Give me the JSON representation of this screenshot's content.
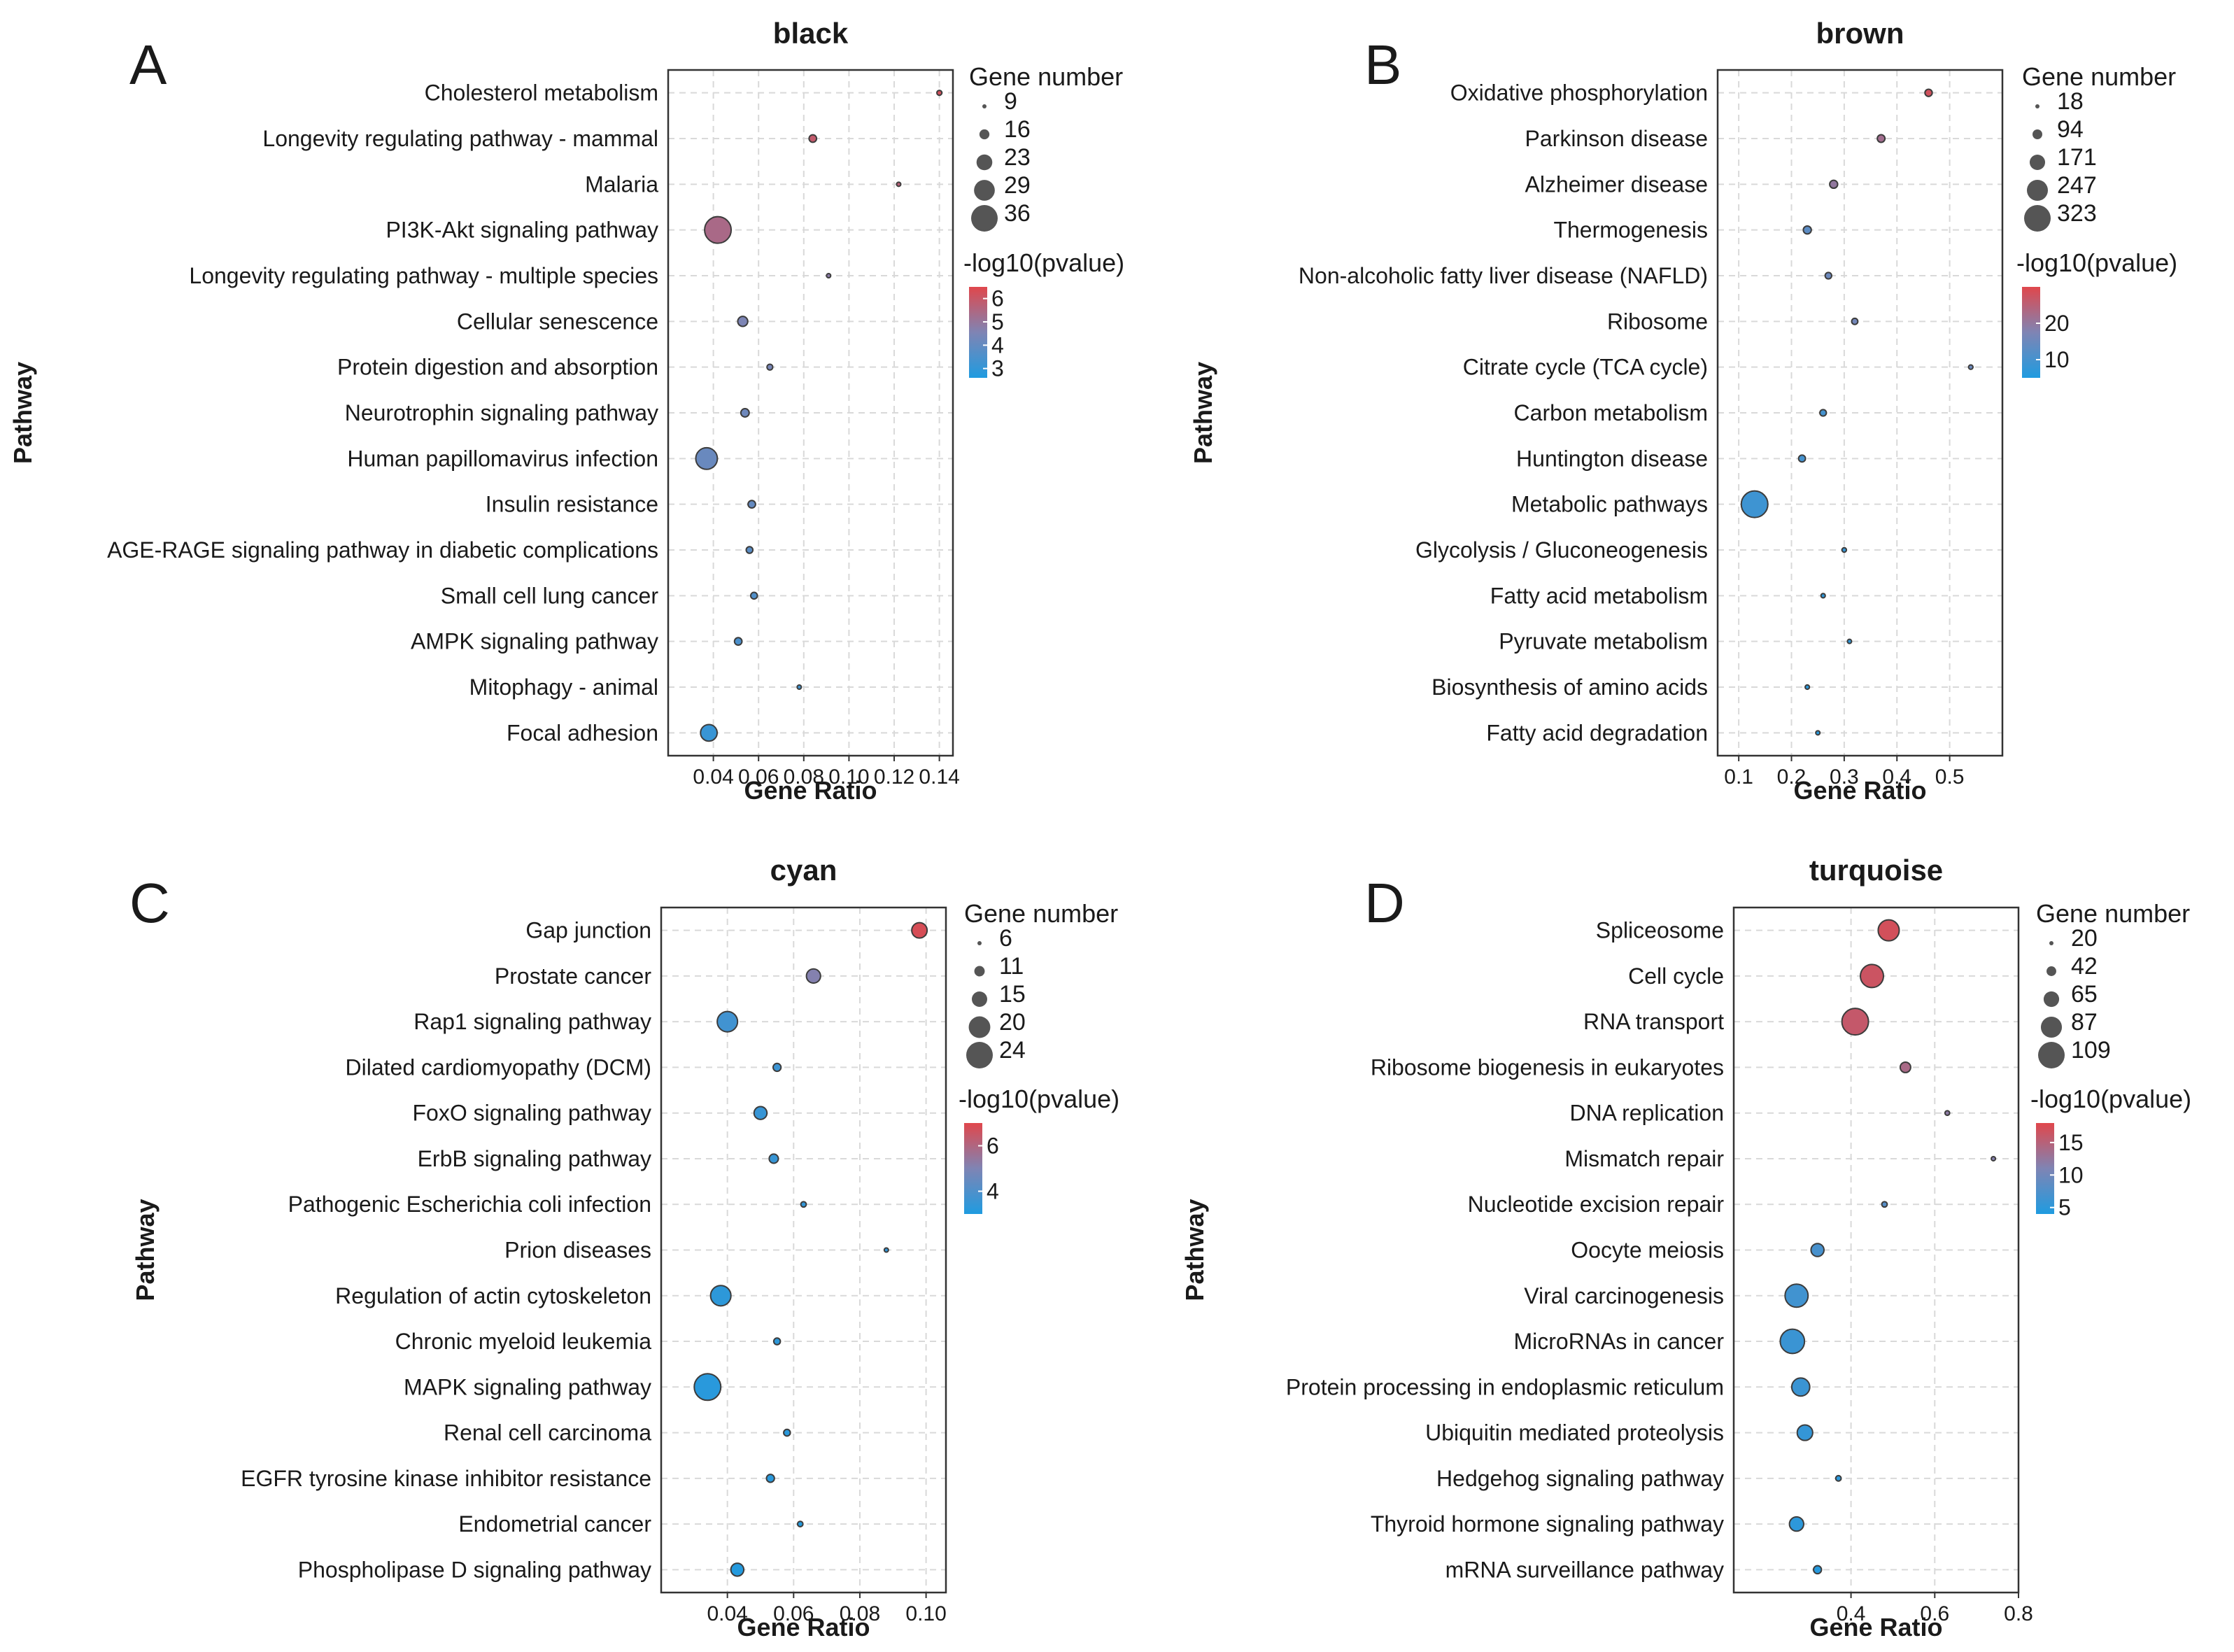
{
  "chart_data": [
    {
      "type": "scatter",
      "panel_label": "A",
      "title": "black",
      "xlabel": "Gene Ratio",
      "ylabel": "Pathway",
      "xlim": [
        0.02,
        0.146
      ],
      "xticks": [
        "0.04",
        "0.06",
        "0.08",
        "0.10",
        "0.12",
        "0.14"
      ],
      "xtick_values": [
        0.04,
        0.06,
        0.08,
        0.1,
        0.12,
        0.14
      ],
      "size_legend": {
        "title": "Gene number",
        "values": [
          9,
          16,
          23,
          29,
          36
        ],
        "labels": [
          "9",
          "16",
          "23",
          "29",
          "36"
        ]
      },
      "color_legend": {
        "title": "-log10(pvalue)",
        "range": [
          2.6,
          6.5
        ],
        "ticks": [
          6,
          5,
          4,
          3
        ],
        "tick_labels": [
          "6",
          "5",
          "4",
          "3"
        ]
      },
      "grid": true,
      "points": [
        {
          "pathway": "Cholesterol metabolism",
          "gene_ratio": 0.14,
          "gene_number": 10,
          "neg_log10_p": 6.2
        },
        {
          "pathway": "Longevity regulating pathway - mammal",
          "gene_ratio": 0.084,
          "gene_number": 13,
          "neg_log10_p": 5.9
        },
        {
          "pathway": "Malaria",
          "gene_ratio": 0.122,
          "gene_number": 9,
          "neg_log10_p": 5.7
        },
        {
          "pathway": "PI3K-Akt signaling pathway",
          "gene_ratio": 0.042,
          "gene_number": 36,
          "neg_log10_p": 5.4
        },
        {
          "pathway": "Longevity regulating pathway - multiple species",
          "gene_ratio": 0.091,
          "gene_number": 8,
          "neg_log10_p": 4.8
        },
        {
          "pathway": "Cellular senescence",
          "gene_ratio": 0.053,
          "gene_number": 16,
          "neg_log10_p": 4.5
        },
        {
          "pathway": "Protein digestion and absorption",
          "gene_ratio": 0.065,
          "gene_number": 11,
          "neg_log10_p": 4.4
        },
        {
          "pathway": "Neurotrophin signaling pathway",
          "gene_ratio": 0.054,
          "gene_number": 14,
          "neg_log10_p": 4.2
        },
        {
          "pathway": "Human papillomavirus infection",
          "gene_ratio": 0.037,
          "gene_number": 30,
          "neg_log10_p": 4.1
        },
        {
          "pathway": "Insulin resistance",
          "gene_ratio": 0.057,
          "gene_number": 13,
          "neg_log10_p": 4.0
        },
        {
          "pathway": "AGE-RAGE signaling pathway in diabetic complications",
          "gene_ratio": 0.056,
          "gene_number": 12,
          "neg_log10_p": 3.8
        },
        {
          "pathway": "Small cell lung cancer",
          "gene_ratio": 0.058,
          "gene_number": 12,
          "neg_log10_p": 3.6
        },
        {
          "pathway": "AMPK signaling pathway",
          "gene_ratio": 0.051,
          "gene_number": 13,
          "neg_log10_p": 3.5
        },
        {
          "pathway": "Mitophagy - animal",
          "gene_ratio": 0.078,
          "gene_number": 8,
          "neg_log10_p": 3.3
        },
        {
          "pathway": "Focal adhesion",
          "gene_ratio": 0.038,
          "gene_number": 24,
          "neg_log10_p": 3.1
        }
      ]
    },
    {
      "type": "scatter",
      "panel_label": "B",
      "title": "brown",
      "xlabel": "Gene Ratio",
      "ylabel": "Pathway",
      "xlim": [
        0.06,
        0.6
      ],
      "xticks": [
        "0.1",
        "0.2",
        "0.3",
        "0.4",
        "0.5"
      ],
      "xtick_values": [
        0.1,
        0.2,
        0.3,
        0.4,
        0.5
      ],
      "size_legend": {
        "title": "Gene number",
        "values": [
          18,
          94,
          171,
          247,
          323
        ],
        "labels": [
          "18",
          "94",
          "171",
          "247",
          "323"
        ]
      },
      "color_legend": {
        "title": "-log10(pvalue)",
        "range": [
          5,
          30
        ],
        "ticks": [
          20,
          10
        ],
        "tick_labels": [
          "20",
          "10"
        ]
      },
      "grid": true,
      "points": [
        {
          "pathway": "Oxidative phosphorylation",
          "gene_ratio": 0.46,
          "gene_number": 60,
          "neg_log10_p": 28
        },
        {
          "pathway": "Parkinson disease",
          "gene_ratio": 0.37,
          "gene_number": 65,
          "neg_log10_p": 22
        },
        {
          "pathway": "Alzheimer disease",
          "gene_ratio": 0.28,
          "gene_number": 70,
          "neg_log10_p": 20
        },
        {
          "pathway": "Thermogenesis",
          "gene_ratio": 0.23,
          "gene_number": 70,
          "neg_log10_p": 13
        },
        {
          "pathway": "Non-alcoholic fatty liver disease (NAFLD)",
          "gene_ratio": 0.27,
          "gene_number": 50,
          "neg_log10_p": 15
        },
        {
          "pathway": "Ribosome",
          "gene_ratio": 0.32,
          "gene_number": 45,
          "neg_log10_p": 16
        },
        {
          "pathway": "Citrate cycle (TCA cycle)",
          "gene_ratio": 0.54,
          "gene_number": 22,
          "neg_log10_p": 15
        },
        {
          "pathway": "Carbon metabolism",
          "gene_ratio": 0.26,
          "gene_number": 50,
          "neg_log10_p": 10
        },
        {
          "pathway": "Huntington disease",
          "gene_ratio": 0.22,
          "gene_number": 55,
          "neg_log10_p": 10
        },
        {
          "pathway": "Metabolic pathways",
          "gene_ratio": 0.13,
          "gene_number": 323,
          "neg_log10_p": 9
        },
        {
          "pathway": "Glycolysis / Gluconeogenesis",
          "gene_ratio": 0.3,
          "gene_number": 22,
          "neg_log10_p": 8
        },
        {
          "pathway": "Fatty acid metabolism",
          "gene_ratio": 0.26,
          "gene_number": 20,
          "neg_log10_p": 7
        },
        {
          "pathway": "Pyruvate metabolism",
          "gene_ratio": 0.31,
          "gene_number": 18,
          "neg_log10_p": 7
        },
        {
          "pathway": "Biosynthesis of amino acids",
          "gene_ratio": 0.23,
          "gene_number": 20,
          "neg_log10_p": 6.5
        },
        {
          "pathway": "Fatty acid degradation",
          "gene_ratio": 0.25,
          "gene_number": 18,
          "neg_log10_p": 6
        }
      ]
    },
    {
      "type": "scatter",
      "panel_label": "C",
      "title": "cyan",
      "xlabel": "Gene Ratio",
      "ylabel": "Pathway",
      "xlim": [
        0.02,
        0.106
      ],
      "xticks": [
        "0.04",
        "0.06",
        "0.08",
        "0.10"
      ],
      "xtick_values": [
        0.04,
        0.06,
        0.08,
        0.1
      ],
      "size_legend": {
        "title": "Gene number",
        "values": [
          6,
          11,
          15,
          20,
          24
        ],
        "labels": [
          "6",
          "11",
          "15",
          "20",
          "24"
        ]
      },
      "color_legend": {
        "title": "-log10(pvalue)",
        "range": [
          3,
          7
        ],
        "ticks": [
          6,
          4
        ],
        "tick_labels": [
          "6",
          "4"
        ]
      },
      "grid": true,
      "points": [
        {
          "pathway": "Gap junction",
          "gene_ratio": 0.098,
          "gene_number": 15,
          "neg_log10_p": 6.8
        },
        {
          "pathway": "Prostate cancer",
          "gene_ratio": 0.066,
          "gene_number": 14,
          "neg_log10_p": 5.1
        },
        {
          "pathway": "Rap1 signaling pathway",
          "gene_ratio": 0.04,
          "gene_number": 19,
          "neg_log10_p": 3.7
        },
        {
          "pathway": "Dilated cardiomyopathy (DCM)",
          "gene_ratio": 0.055,
          "gene_number": 9,
          "neg_log10_p": 3.6
        },
        {
          "pathway": "FoxO signaling pathway",
          "gene_ratio": 0.05,
          "gene_number": 13,
          "neg_log10_p": 3.5
        },
        {
          "pathway": "ErbB signaling pathway",
          "gene_ratio": 0.054,
          "gene_number": 10,
          "neg_log10_p": 3.5
        },
        {
          "pathway": "Pathogenic Escherichia coli infection",
          "gene_ratio": 0.063,
          "gene_number": 7,
          "neg_log10_p": 3.4
        },
        {
          "pathway": "Prion diseases",
          "gene_ratio": 0.088,
          "gene_number": 6,
          "neg_log10_p": 3.4
        },
        {
          "pathway": "Regulation of actin cytoskeleton",
          "gene_ratio": 0.038,
          "gene_number": 19,
          "neg_log10_p": 3.3
        },
        {
          "pathway": "Chronic myeloid leukemia",
          "gene_ratio": 0.055,
          "gene_number": 8,
          "neg_log10_p": 3.3
        },
        {
          "pathway": "MAPK signaling pathway",
          "gene_ratio": 0.034,
          "gene_number": 24,
          "neg_log10_p": 3.2
        },
        {
          "pathway": "Renal cell carcinoma",
          "gene_ratio": 0.058,
          "gene_number": 8,
          "neg_log10_p": 3.2
        },
        {
          "pathway": "EGFR tyrosine kinase inhibitor resistance",
          "gene_ratio": 0.053,
          "gene_number": 9,
          "neg_log10_p": 3.2
        },
        {
          "pathway": "Endometrial cancer",
          "gene_ratio": 0.062,
          "gene_number": 7,
          "neg_log10_p": 3.1
        },
        {
          "pathway": "Phospholipase D signaling pathway",
          "gene_ratio": 0.043,
          "gene_number": 13,
          "neg_log10_p": 3.1
        }
      ]
    },
    {
      "type": "scatter",
      "panel_label": "D",
      "title": "turquoise",
      "xlabel": "Gene Ratio",
      "ylabel": "Pathway",
      "xlim": [
        0.12,
        0.8
      ],
      "xticks": [
        "0.4",
        "0.6",
        "0.8"
      ],
      "xtick_values": [
        0.4,
        0.6,
        0.8
      ],
      "size_legend": {
        "title": "Gene number",
        "values": [
          20,
          42,
          65,
          87,
          109
        ],
        "labels": [
          "20",
          "42",
          "65",
          "87",
          "109"
        ]
      },
      "color_legend": {
        "title": "-log10(pvalue)",
        "range": [
          4,
          18
        ],
        "ticks": [
          15,
          10,
          5
        ],
        "tick_labels": [
          "15",
          "10",
          "5"
        ]
      },
      "grid": true,
      "points": [
        {
          "pathway": "Spliceosome",
          "gene_ratio": 0.49,
          "gene_number": 87,
          "neg_log10_p": 17
        },
        {
          "pathway": "Cell cycle",
          "gene_ratio": 0.45,
          "gene_number": 95,
          "neg_log10_p": 16.5
        },
        {
          "pathway": "RNA transport",
          "gene_ratio": 0.41,
          "gene_number": 109,
          "neg_log10_p": 16
        },
        {
          "pathway": "Ribosome biogenesis in eukaryotes",
          "gene_ratio": 0.53,
          "gene_number": 45,
          "neg_log10_p": 14
        },
        {
          "pathway": "DNA replication",
          "gene_ratio": 0.63,
          "gene_number": 22,
          "neg_log10_p": 12
        },
        {
          "pathway": "Mismatch repair",
          "gene_ratio": 0.74,
          "gene_number": 17,
          "neg_log10_p": 11.5
        },
        {
          "pathway": "Nucleotide excision repair",
          "gene_ratio": 0.48,
          "gene_number": 25,
          "neg_log10_p": 8
        },
        {
          "pathway": "Oocyte meiosis",
          "gene_ratio": 0.32,
          "gene_number": 55,
          "neg_log10_p": 7
        },
        {
          "pathway": "Viral carcinogenesis",
          "gene_ratio": 0.27,
          "gene_number": 95,
          "neg_log10_p": 6.5
        },
        {
          "pathway": "MicroRNAs in cancer",
          "gene_ratio": 0.26,
          "gene_number": 100,
          "neg_log10_p": 6
        },
        {
          "pathway": "Protein processing in endoplasmic reticulum",
          "gene_ratio": 0.28,
          "gene_number": 75,
          "neg_log10_p": 6
        },
        {
          "pathway": "Ubiquitin mediated proteolysis",
          "gene_ratio": 0.29,
          "gene_number": 65,
          "neg_log10_p": 5.5
        },
        {
          "pathway": "Hedgehog signaling pathway",
          "gene_ratio": 0.37,
          "gene_number": 25,
          "neg_log10_p": 5
        },
        {
          "pathway": "Thyroid hormone signaling pathway",
          "gene_ratio": 0.27,
          "gene_number": 60,
          "neg_log10_p": 5
        },
        {
          "pathway": "mRNA surveillance pathway",
          "gene_ratio": 0.32,
          "gene_number": 35,
          "neg_log10_p": 4.5
        }
      ]
    }
  ],
  "colors": {
    "low": "#1f9be0",
    "mid": "#7f84b4",
    "high": "#e0474c",
    "point_outline": "#3c3c3c",
    "legend_dot": "#555555",
    "grid": "#d9d9d9",
    "frame": "#333333"
  }
}
